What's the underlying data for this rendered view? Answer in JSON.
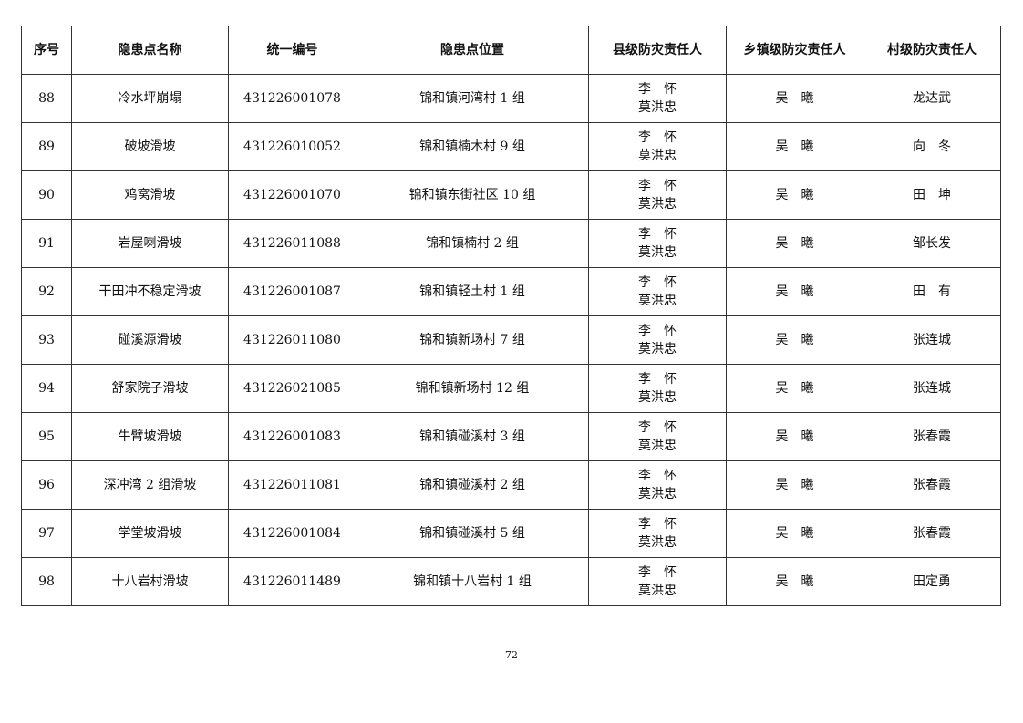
{
  "table": {
    "headers": [
      "序号",
      "隐患点名称",
      "统一编号",
      "隐患点位置",
      "县级防灾责任人",
      "乡镇级防灾责任人",
      "村级防灾责任人"
    ],
    "rows": [
      {
        "no": "88",
        "name": "冷水坪崩塌",
        "code": "431226001078",
        "location": "锦和镇河湾村 1 组",
        "county": [
          "李　怀",
          "莫洪忠"
        ],
        "town": "吴　曦",
        "village": "龙达武"
      },
      {
        "no": "89",
        "name": "破坡滑坡",
        "code": "431226010052",
        "location": "锦和镇楠木村 9 组",
        "county": [
          "李　怀",
          "莫洪忠"
        ],
        "town": "吴　曦",
        "village": "向　冬"
      },
      {
        "no": "90",
        "name": "鸡窝滑坡",
        "code": "431226001070",
        "location": "锦和镇东街社区 10 组",
        "county": [
          "李　怀",
          "莫洪忠"
        ],
        "town": "吴　曦",
        "village": "田　坤"
      },
      {
        "no": "91",
        "name": "岩屋喇滑坡",
        "code": "431226011088",
        "location": "锦和镇楠村 2 组",
        "county": [
          "李　怀",
          "莫洪忠"
        ],
        "town": "吴　曦",
        "village": "邹长发"
      },
      {
        "no": "92",
        "name": "干田冲不稳定滑坡",
        "code": "431226001087",
        "location": "锦和镇轻土村 1 组",
        "county": [
          "李　怀",
          "莫洪忠"
        ],
        "town": "吴　曦",
        "village": "田　有"
      },
      {
        "no": "93",
        "name": "碰溪源滑坡",
        "code": "431226011080",
        "location": "锦和镇新场村 7 组",
        "county": [
          "李　怀",
          "莫洪忠"
        ],
        "town": "吴　曦",
        "village": "张连城"
      },
      {
        "no": "94",
        "name": "舒家院子滑坡",
        "code": "431226021085",
        "location": "锦和镇新场村 12 组",
        "county": [
          "李　怀",
          "莫洪忠"
        ],
        "town": "吴　曦",
        "village": "张连城"
      },
      {
        "no": "95",
        "name": "牛臂坡滑坡",
        "code": "431226001083",
        "location": "锦和镇碰溪村 3 组",
        "county": [
          "李　怀",
          "莫洪忠"
        ],
        "town": "吴　曦",
        "village": "张春霞"
      },
      {
        "no": "96",
        "name": "深冲湾 2 组滑坡",
        "code": "431226011081",
        "location": "锦和镇碰溪村 2 组",
        "county": [
          "李　怀",
          "莫洪忠"
        ],
        "town": "吴　曦",
        "village": "张春霞"
      },
      {
        "no": "97",
        "name": "学堂坡滑坡",
        "code": "431226001084",
        "location": "锦和镇碰溪村 5 组",
        "county": [
          "李　怀",
          "莫洪忠"
        ],
        "town": "吴　曦",
        "village": "张春霞"
      },
      {
        "no": "98",
        "name": "十八岩村滑坡",
        "code": "431226011489",
        "location": "锦和镇十八岩村 1 组",
        "county": [
          "李　怀",
          "莫洪忠"
        ],
        "town": "吴　曦",
        "village": "田定勇"
      }
    ]
  },
  "page_number": "72"
}
